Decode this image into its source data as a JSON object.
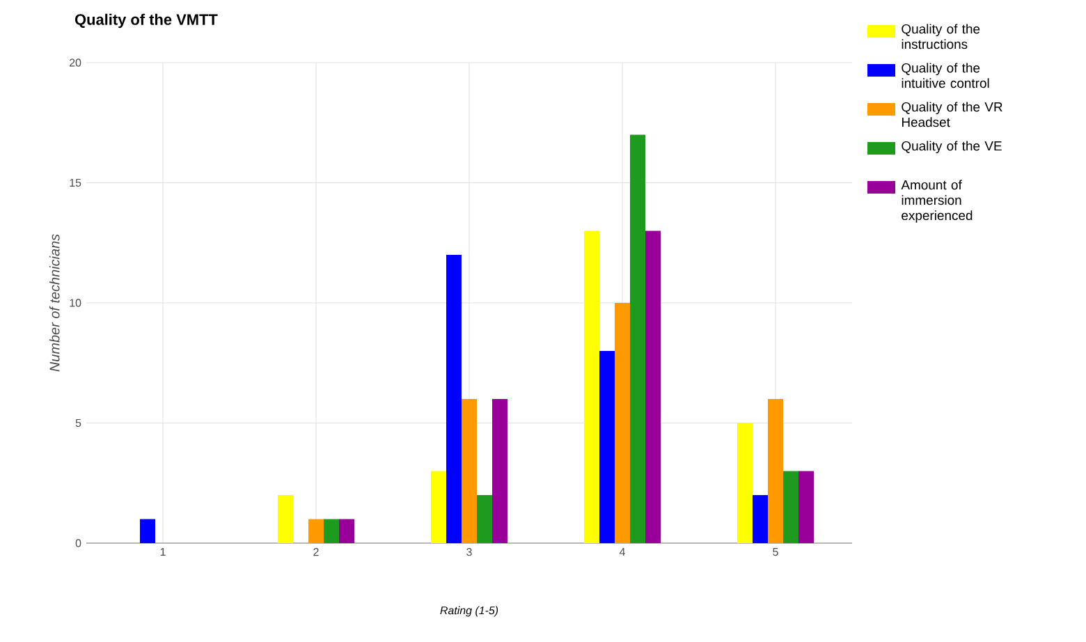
{
  "chart_data": {
    "type": "bar",
    "title": "Quality of the VMTT",
    "xlabel": "Rating (1-5)",
    "ylabel": "Number of technicians",
    "categories": [
      "1",
      "2",
      "3",
      "4",
      "5"
    ],
    "series": [
      {
        "name": "Quality of the instructions",
        "color": "#ffff00",
        "values": [
          0,
          2,
          3,
          13,
          5
        ]
      },
      {
        "name": "Quality of the intuitive control",
        "color": "#0000ff",
        "values": [
          1,
          0,
          12,
          8,
          2
        ]
      },
      {
        "name": "Quality of the VR Headset",
        "color": "#ff9900",
        "values": [
          0,
          1,
          6,
          10,
          6
        ]
      },
      {
        "name": "Quality of the VE",
        "color": "#1e9b1e",
        "values": [
          0,
          1,
          2,
          17,
          3
        ]
      },
      {
        "name": "Amount of immersion experienced",
        "color": "#990099",
        "values": [
          0,
          1,
          6,
          13,
          3
        ]
      }
    ],
    "ylim": [
      0,
      20
    ],
    "yticks": [
      0,
      5,
      10,
      15,
      20
    ],
    "grid": true,
    "legend": "right"
  }
}
